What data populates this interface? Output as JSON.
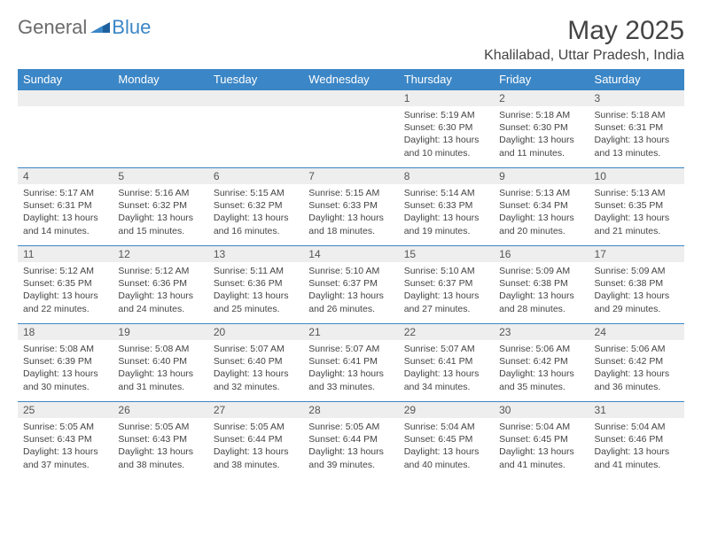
{
  "logo": {
    "part1": "General",
    "part2": "Blue"
  },
  "title": "May 2025",
  "location": "Khalilabad, Uttar Pradesh, India",
  "colors": {
    "header_bg": "#3b86c6",
    "header_text": "#ffffff",
    "daynum_bg": "#eeeeee",
    "border": "#3b86c6",
    "body_text": "#444444",
    "logo_gray": "#6b6b6b",
    "logo_blue": "#3b86c6"
  },
  "day_headers": [
    "Sunday",
    "Monday",
    "Tuesday",
    "Wednesday",
    "Thursday",
    "Friday",
    "Saturday"
  ],
  "weeks": [
    [
      null,
      null,
      null,
      null,
      {
        "n": "1",
        "sr": "Sunrise: 5:19 AM",
        "ss": "Sunset: 6:30 PM",
        "d1": "Daylight: 13 hours",
        "d2": "and 10 minutes."
      },
      {
        "n": "2",
        "sr": "Sunrise: 5:18 AM",
        "ss": "Sunset: 6:30 PM",
        "d1": "Daylight: 13 hours",
        "d2": "and 11 minutes."
      },
      {
        "n": "3",
        "sr": "Sunrise: 5:18 AM",
        "ss": "Sunset: 6:31 PM",
        "d1": "Daylight: 13 hours",
        "d2": "and 13 minutes."
      }
    ],
    [
      {
        "n": "4",
        "sr": "Sunrise: 5:17 AM",
        "ss": "Sunset: 6:31 PM",
        "d1": "Daylight: 13 hours",
        "d2": "and 14 minutes."
      },
      {
        "n": "5",
        "sr": "Sunrise: 5:16 AM",
        "ss": "Sunset: 6:32 PM",
        "d1": "Daylight: 13 hours",
        "d2": "and 15 minutes."
      },
      {
        "n": "6",
        "sr": "Sunrise: 5:15 AM",
        "ss": "Sunset: 6:32 PM",
        "d1": "Daylight: 13 hours",
        "d2": "and 16 minutes."
      },
      {
        "n": "7",
        "sr": "Sunrise: 5:15 AM",
        "ss": "Sunset: 6:33 PM",
        "d1": "Daylight: 13 hours",
        "d2": "and 18 minutes."
      },
      {
        "n": "8",
        "sr": "Sunrise: 5:14 AM",
        "ss": "Sunset: 6:33 PM",
        "d1": "Daylight: 13 hours",
        "d2": "and 19 minutes."
      },
      {
        "n": "9",
        "sr": "Sunrise: 5:13 AM",
        "ss": "Sunset: 6:34 PM",
        "d1": "Daylight: 13 hours",
        "d2": "and 20 minutes."
      },
      {
        "n": "10",
        "sr": "Sunrise: 5:13 AM",
        "ss": "Sunset: 6:35 PM",
        "d1": "Daylight: 13 hours",
        "d2": "and 21 minutes."
      }
    ],
    [
      {
        "n": "11",
        "sr": "Sunrise: 5:12 AM",
        "ss": "Sunset: 6:35 PM",
        "d1": "Daylight: 13 hours",
        "d2": "and 22 minutes."
      },
      {
        "n": "12",
        "sr": "Sunrise: 5:12 AM",
        "ss": "Sunset: 6:36 PM",
        "d1": "Daylight: 13 hours",
        "d2": "and 24 minutes."
      },
      {
        "n": "13",
        "sr": "Sunrise: 5:11 AM",
        "ss": "Sunset: 6:36 PM",
        "d1": "Daylight: 13 hours",
        "d2": "and 25 minutes."
      },
      {
        "n": "14",
        "sr": "Sunrise: 5:10 AM",
        "ss": "Sunset: 6:37 PM",
        "d1": "Daylight: 13 hours",
        "d2": "and 26 minutes."
      },
      {
        "n": "15",
        "sr": "Sunrise: 5:10 AM",
        "ss": "Sunset: 6:37 PM",
        "d1": "Daylight: 13 hours",
        "d2": "and 27 minutes."
      },
      {
        "n": "16",
        "sr": "Sunrise: 5:09 AM",
        "ss": "Sunset: 6:38 PM",
        "d1": "Daylight: 13 hours",
        "d2": "and 28 minutes."
      },
      {
        "n": "17",
        "sr": "Sunrise: 5:09 AM",
        "ss": "Sunset: 6:38 PM",
        "d1": "Daylight: 13 hours",
        "d2": "and 29 minutes."
      }
    ],
    [
      {
        "n": "18",
        "sr": "Sunrise: 5:08 AM",
        "ss": "Sunset: 6:39 PM",
        "d1": "Daylight: 13 hours",
        "d2": "and 30 minutes."
      },
      {
        "n": "19",
        "sr": "Sunrise: 5:08 AM",
        "ss": "Sunset: 6:40 PM",
        "d1": "Daylight: 13 hours",
        "d2": "and 31 minutes."
      },
      {
        "n": "20",
        "sr": "Sunrise: 5:07 AM",
        "ss": "Sunset: 6:40 PM",
        "d1": "Daylight: 13 hours",
        "d2": "and 32 minutes."
      },
      {
        "n": "21",
        "sr": "Sunrise: 5:07 AM",
        "ss": "Sunset: 6:41 PM",
        "d1": "Daylight: 13 hours",
        "d2": "and 33 minutes."
      },
      {
        "n": "22",
        "sr": "Sunrise: 5:07 AM",
        "ss": "Sunset: 6:41 PM",
        "d1": "Daylight: 13 hours",
        "d2": "and 34 minutes."
      },
      {
        "n": "23",
        "sr": "Sunrise: 5:06 AM",
        "ss": "Sunset: 6:42 PM",
        "d1": "Daylight: 13 hours",
        "d2": "and 35 minutes."
      },
      {
        "n": "24",
        "sr": "Sunrise: 5:06 AM",
        "ss": "Sunset: 6:42 PM",
        "d1": "Daylight: 13 hours",
        "d2": "and 36 minutes."
      }
    ],
    [
      {
        "n": "25",
        "sr": "Sunrise: 5:05 AM",
        "ss": "Sunset: 6:43 PM",
        "d1": "Daylight: 13 hours",
        "d2": "and 37 minutes."
      },
      {
        "n": "26",
        "sr": "Sunrise: 5:05 AM",
        "ss": "Sunset: 6:43 PM",
        "d1": "Daylight: 13 hours",
        "d2": "and 38 minutes."
      },
      {
        "n": "27",
        "sr": "Sunrise: 5:05 AM",
        "ss": "Sunset: 6:44 PM",
        "d1": "Daylight: 13 hours",
        "d2": "and 38 minutes."
      },
      {
        "n": "28",
        "sr": "Sunrise: 5:05 AM",
        "ss": "Sunset: 6:44 PM",
        "d1": "Daylight: 13 hours",
        "d2": "and 39 minutes."
      },
      {
        "n": "29",
        "sr": "Sunrise: 5:04 AM",
        "ss": "Sunset: 6:45 PM",
        "d1": "Daylight: 13 hours",
        "d2": "and 40 minutes."
      },
      {
        "n": "30",
        "sr": "Sunrise: 5:04 AM",
        "ss": "Sunset: 6:45 PM",
        "d1": "Daylight: 13 hours",
        "d2": "and 41 minutes."
      },
      {
        "n": "31",
        "sr": "Sunrise: 5:04 AM",
        "ss": "Sunset: 6:46 PM",
        "d1": "Daylight: 13 hours",
        "d2": "and 41 minutes."
      }
    ]
  ]
}
